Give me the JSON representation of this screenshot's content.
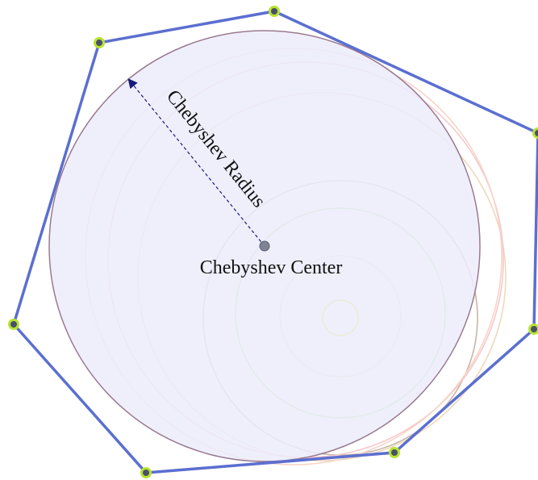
{
  "labels": {
    "center": "Chebyshev Center",
    "radius": "Chebyshev Radius"
  },
  "colors": {
    "polygon_edge": "#5b6fd0",
    "vertex_fill": "#4a4f6b",
    "vertex_ring": "#b6e32e",
    "chebyshev_circle_fill": "#ececfb",
    "chebyshev_circle_stroke": "#9a7a8f",
    "center_point": "#7f8394",
    "radius_arrow": "#1a1a7a",
    "circle_1": "#e8e22e",
    "circle_2": "#d9ebc3",
    "circle_3": "#a8e08f",
    "circle_4": "#c8b6a6",
    "circle_5": "#f0d8bb",
    "circle_6": "#f5c8cc",
    "circle_7": "#f7d4c8"
  },
  "icons": {
    "vertex": "vertex-point",
    "center": "center-point",
    "arrow": "arrowhead"
  }
}
